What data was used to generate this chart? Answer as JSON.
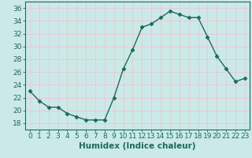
{
  "x": [
    0,
    1,
    2,
    3,
    4,
    5,
    6,
    7,
    8,
    9,
    10,
    11,
    12,
    13,
    14,
    15,
    16,
    17,
    18,
    19,
    20,
    21,
    22,
    23
  ],
  "y": [
    23,
    21.5,
    20.5,
    20.5,
    19.5,
    19.0,
    18.5,
    18.5,
    18.5,
    22.0,
    26.5,
    29.5,
    33.0,
    33.5,
    34.5,
    35.5,
    35.0,
    34.5,
    34.5,
    31.5,
    28.5,
    26.5,
    24.5,
    25.0
  ],
  "line_color": "#1a6b5a",
  "marker": "D",
  "marker_size": 2.5,
  "bg_color": "#cce9e9",
  "grid_color": "#e8c8c8",
  "xlabel": "Humidex (Indice chaleur)",
  "ylim": [
    17,
    37
  ],
  "xlim": [
    -0.5,
    23.5
  ],
  "yticks": [
    18,
    20,
    22,
    24,
    26,
    28,
    30,
    32,
    34,
    36
  ],
  "xticks": [
    0,
    1,
    2,
    3,
    4,
    5,
    6,
    7,
    8,
    9,
    10,
    11,
    12,
    13,
    14,
    15,
    16,
    17,
    18,
    19,
    20,
    21,
    22,
    23
  ],
  "xlabel_fontsize": 7.5,
  "tick_fontsize": 6.5,
  "linewidth": 1.0
}
